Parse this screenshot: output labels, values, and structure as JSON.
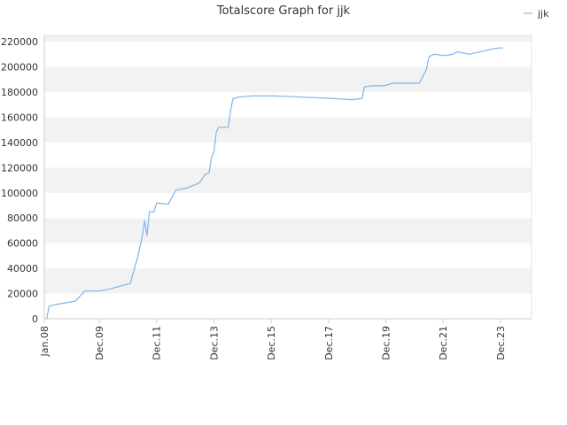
{
  "chart_data": {
    "type": "line",
    "title": "Totalscore Graph for jjk",
    "xlabel": "",
    "ylabel": "",
    "x_tick_labels": [
      "Jan.08",
      "Dec.09",
      "Dec.11",
      "Dec.13",
      "Dec.15",
      "Dec.17",
      "Dec.19",
      "Dec.21",
      "Dec.23"
    ],
    "x_tick_dates": [
      "2008-01",
      "2009-12",
      "2011-12",
      "2013-12",
      "2015-12",
      "2017-12",
      "2019-12",
      "2021-12",
      "2023-12"
    ],
    "xlim": [
      "2008-01",
      "2025-01"
    ],
    "ylim": [
      0,
      225000
    ],
    "y_ticks": [
      0,
      20000,
      40000,
      60000,
      80000,
      100000,
      120000,
      140000,
      160000,
      180000,
      200000,
      220000
    ],
    "grid": "alternating horizontal bands",
    "legend_position": "top-right",
    "series": [
      {
        "name": "jjk",
        "color": "#7cb5ec",
        "points": [
          [
            "2008-02",
            0
          ],
          [
            "2008-03",
            10000
          ],
          [
            "2008-05",
            11000
          ],
          [
            "2008-08",
            12000
          ],
          [
            "2009-02",
            14000
          ],
          [
            "2009-06",
            22000
          ],
          [
            "2009-12",
            22000
          ],
          [
            "2010-05",
            24000
          ],
          [
            "2010-11",
            27000
          ],
          [
            "2011-01",
            28000
          ],
          [
            "2011-02",
            35000
          ],
          [
            "2011-03",
            42000
          ],
          [
            "2011-04",
            48000
          ],
          [
            "2011-06",
            65000
          ],
          [
            "2011-07",
            78000
          ],
          [
            "2011-08",
            66000
          ],
          [
            "2011-09",
            85000
          ],
          [
            "2011-11",
            85000
          ],
          [
            "2011-12",
            92000
          ],
          [
            "2012-05",
            91000
          ],
          [
            "2012-06",
            95000
          ],
          [
            "2012-08",
            102000
          ],
          [
            "2013-01",
            104000
          ],
          [
            "2013-06",
            108000
          ],
          [
            "2013-08",
            114000
          ],
          [
            "2013-10",
            116000
          ],
          [
            "2013-11",
            128000
          ],
          [
            "2013-12",
            132000
          ],
          [
            "2014-01",
            148000
          ],
          [
            "2014-02",
            152000
          ],
          [
            "2014-06",
            152000
          ],
          [
            "2014-07",
            165000
          ],
          [
            "2014-08",
            175000
          ],
          [
            "2014-09",
            175000
          ],
          [
            "2014-10",
            176000
          ],
          [
            "2015-04",
            177000
          ],
          [
            "2016-01",
            177000
          ],
          [
            "2017-01",
            176000
          ],
          [
            "2018-01",
            175000
          ],
          [
            "2018-09",
            174000
          ],
          [
            "2018-10",
            174000
          ],
          [
            "2019-02",
            175000
          ],
          [
            "2019-03",
            184000
          ],
          [
            "2019-06",
            185000
          ],
          [
            "2019-11",
            185000
          ],
          [
            "2020-03",
            187000
          ],
          [
            "2020-08",
            187000
          ],
          [
            "2021-02",
            187000
          ],
          [
            "2021-05",
            198000
          ],
          [
            "2021-06",
            208000
          ],
          [
            "2021-08",
            210000
          ],
          [
            "2022-01",
            209000
          ],
          [
            "2022-04",
            210000
          ],
          [
            "2022-06",
            212000
          ],
          [
            "2022-11",
            210000
          ],
          [
            "2023-01",
            211000
          ],
          [
            "2023-06",
            213000
          ],
          [
            "2023-08",
            214000
          ],
          [
            "2023-11",
            215000
          ],
          [
            "2024-01",
            215000
          ]
        ]
      }
    ]
  }
}
